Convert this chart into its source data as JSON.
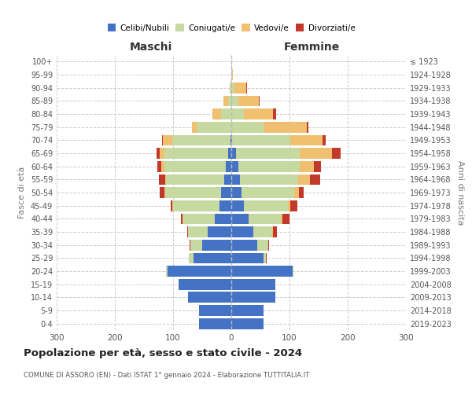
{
  "age_groups": [
    "0-4",
    "5-9",
    "10-14",
    "15-19",
    "20-24",
    "25-29",
    "30-34",
    "35-39",
    "40-44",
    "45-49",
    "50-54",
    "55-59",
    "60-64",
    "65-69",
    "70-74",
    "75-79",
    "80-84",
    "85-89",
    "90-94",
    "95-99",
    "100+"
  ],
  "birth_years": [
    "2019-2023",
    "2014-2018",
    "2009-2013",
    "2004-2008",
    "1999-2003",
    "1994-1998",
    "1989-1993",
    "1984-1988",
    "1979-1983",
    "1974-1978",
    "1969-1973",
    "1964-1968",
    "1959-1963",
    "1954-1958",
    "1949-1953",
    "1944-1948",
    "1939-1943",
    "1934-1938",
    "1929-1933",
    "1924-1928",
    "≤ 1923"
  ],
  "colors": {
    "celibe": "#4472C4",
    "coniugato": "#c5d9a0",
    "vedovo": "#f0c070",
    "divorziato": "#c0392b"
  },
  "males": {
    "celibe": [
      55,
      55,
      75,
      90,
      110,
      65,
      50,
      40,
      28,
      20,
      18,
      12,
      10,
      5,
      2,
      0,
      0,
      0,
      0,
      0,
      0
    ],
    "coniugato": [
      0,
      0,
      0,
      1,
      2,
      8,
      20,
      35,
      55,
      80,
      95,
      100,
      105,
      110,
      100,
      60,
      18,
      5,
      1,
      0,
      0
    ],
    "vedovo": [
      0,
      0,
      0,
      0,
      0,
      0,
      0,
      0,
      1,
      1,
      2,
      2,
      5,
      8,
      15,
      8,
      15,
      8,
      2,
      0,
      0
    ],
    "divorziato": [
      0,
      0,
      0,
      0,
      0,
      0,
      1,
      1,
      2,
      3,
      8,
      10,
      7,
      5,
      2,
      0,
      0,
      0,
      0,
      0,
      0
    ]
  },
  "females": {
    "nubile": [
      55,
      55,
      75,
      75,
      105,
      55,
      45,
      38,
      30,
      22,
      18,
      15,
      12,
      8,
      2,
      0,
      0,
      0,
      0,
      0,
      0
    ],
    "coniugata": [
      0,
      0,
      0,
      0,
      2,
      5,
      18,
      32,
      55,
      75,
      90,
      100,
      105,
      110,
      100,
      55,
      22,
      12,
      5,
      1,
      0
    ],
    "vedova": [
      0,
      0,
      0,
      0,
      0,
      0,
      0,
      1,
      3,
      5,
      8,
      20,
      25,
      55,
      55,
      75,
      50,
      35,
      20,
      2,
      0
    ],
    "divorziata": [
      0,
      0,
      0,
      0,
      0,
      1,
      2,
      8,
      12,
      12,
      8,
      18,
      12,
      15,
      5,
      3,
      5,
      2,
      2,
      0,
      0
    ]
  },
  "xlim": 300,
  "title": "Popolazione per età, sesso e stato civile - 2024",
  "subtitle": "COMUNE DI ASSORO (EN) - Dati ISTAT 1° gennaio 2024 - Elaborazione TUTTITALIA.IT",
  "ylabel_left": "Fasce di età",
  "ylabel_right": "Anni di nascita",
  "xlabel_left": "Maschi",
  "xlabel_right": "Femmine",
  "legend_labels": [
    "Celibi/Nubili",
    "Coniugati/e",
    "Vedovi/e",
    "Divorziati/e"
  ]
}
